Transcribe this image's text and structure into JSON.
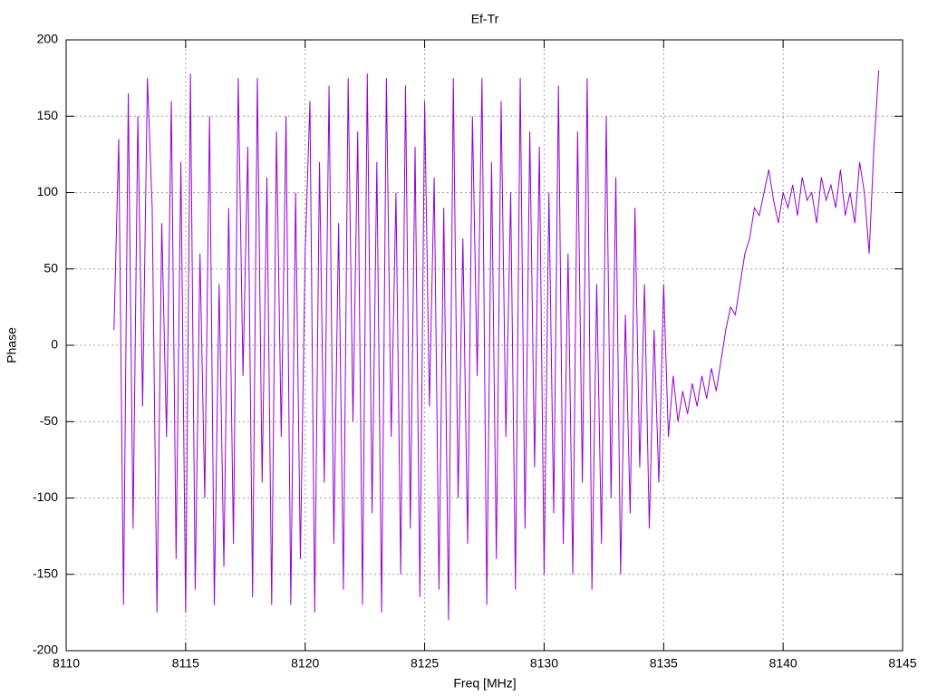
{
  "chart_data": {
    "type": "line",
    "title": "Ef-Tr",
    "x_label": "Freq [MHz]",
    "y_label": "Phase",
    "color": "#9400d3",
    "grid": true,
    "xlim": [
      8110,
      8145
    ],
    "xticks": [
      8110,
      8115,
      8120,
      8125,
      8130,
      8135,
      8140,
      8145
    ],
    "ylim": [
      -200,
      200
    ],
    "yticks": [
      -200,
      -150,
      -100,
      -50,
      0,
      50,
      100,
      150,
      200
    ],
    "x": [
      8112,
      8112.2,
      8112.4,
      8112.6,
      8112.8,
      8113,
      8113.2,
      8113.4,
      8113.6,
      8113.8,
      8114,
      8114.2,
      8114.4,
      8114.6,
      8114.8,
      8115,
      8115.2,
      8115.4,
      8115.6,
      8115.8,
      8116,
      8116.2,
      8116.4,
      8116.6,
      8116.8,
      8117,
      8117.2,
      8117.4,
      8117.6,
      8117.8,
      8118,
      8118.2,
      8118.4,
      8118.6,
      8118.8,
      8119,
      8119.2,
      8119.4,
      8119.6,
      8119.8,
      8120,
      8120.2,
      8120.4,
      8120.6,
      8120.8,
      8121,
      8121.2,
      8121.4,
      8121.6,
      8121.8,
      8122,
      8122.2,
      8122.4,
      8122.6,
      8122.8,
      8123,
      8123.2,
      8123.4,
      8123.6,
      8123.8,
      8124,
      8124.2,
      8124.4,
      8124.6,
      8124.8,
      8125,
      8125.2,
      8125.4,
      8125.6,
      8125.8,
      8126,
      8126.2,
      8126.4,
      8126.6,
      8126.8,
      8127,
      8127.2,
      8127.4,
      8127.6,
      8127.8,
      8128,
      8128.2,
      8128.4,
      8128.6,
      8128.8,
      8129,
      8129.2,
      8129.4,
      8129.6,
      8129.8,
      8130,
      8130.2,
      8130.4,
      8130.6,
      8130.8,
      8131,
      8131.2,
      8131.4,
      8131.6,
      8131.8,
      8132,
      8132.2,
      8132.4,
      8132.6,
      8132.8,
      8133,
      8133.2,
      8133.4,
      8133.6,
      8133.8,
      8134,
      8134.2,
      8134.4,
      8134.6,
      8134.8,
      8135,
      8135.2,
      8135.4,
      8135.6,
      8135.8,
      8136,
      8136.2,
      8136.4,
      8136.6,
      8136.8,
      8137,
      8137.2,
      8137.4,
      8137.6,
      8137.8,
      8138,
      8138.2,
      8138.4,
      8138.6,
      8138.8,
      8139,
      8139.2,
      8139.4,
      8139.6,
      8139.8,
      8140,
      8140.2,
      8140.4,
      8140.6,
      8140.8,
      8141,
      8141.2,
      8141.4,
      8141.6,
      8141.8,
      8142,
      8142.2,
      8142.4,
      8142.6,
      8142.8,
      8143,
      8143.2,
      8143.4,
      8143.6,
      8143.8,
      8144
    ],
    "values": [
      10,
      135,
      -170,
      165,
      -120,
      150,
      -40,
      175,
      90,
      -175,
      80,
      -60,
      160,
      -140,
      120,
      -175,
      178,
      -160,
      60,
      -100,
      150,
      -170,
      40,
      -145,
      90,
      -130,
      175,
      -20,
      130,
      -165,
      175,
      -90,
      110,
      -170,
      140,
      -60,
      150,
      -170,
      100,
      -140,
      60,
      160,
      -175,
      120,
      -90,
      170,
      -130,
      80,
      -160,
      175,
      -50,
      140,
      -170,
      178,
      -110,
      120,
      -175,
      175,
      -60,
      100,
      -150,
      170,
      -120,
      130,
      -165,
      160,
      -40,
      110,
      -160,
      90,
      -180,
      175,
      -100,
      70,
      -130,
      150,
      -20,
      175,
      -170,
      120,
      -140,
      160,
      -60,
      100,
      -160,
      175,
      -120,
      140,
      -80,
      130,
      -150,
      100,
      -110,
      170,
      -130,
      60,
      -150,
      140,
      -90,
      175,
      -160,
      40,
      -130,
      150,
      -100,
      110,
      -150,
      20,
      -110,
      90,
      -80,
      40,
      -120,
      10,
      -90,
      40,
      -60,
      -20,
      -50,
      -30,
      -45,
      -25,
      -40,
      -20,
      -35,
      -15,
      -30,
      -10,
      10,
      25,
      20,
      40,
      60,
      70,
      90,
      85,
      100,
      115,
      95,
      80,
      100,
      90,
      105,
      85,
      110,
      95,
      100,
      80,
      110,
      95,
      105,
      90,
      115,
      85,
      100,
      80,
      120,
      100,
      60,
      130,
      180
    ]
  }
}
